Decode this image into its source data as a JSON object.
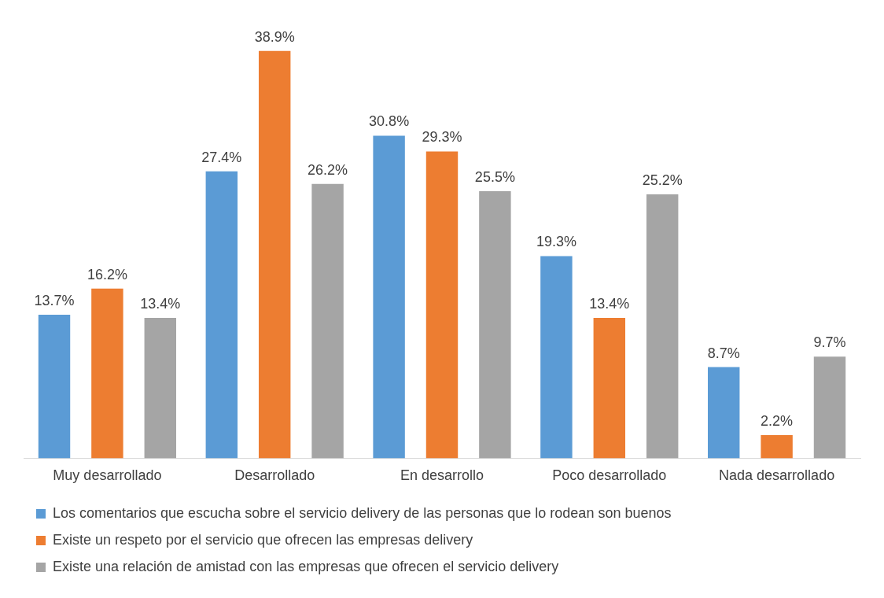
{
  "chart_data": {
    "type": "bar",
    "categories": [
      "Muy desarrollado",
      "Desarrollado",
      "En desarrollo",
      "Poco desarrollado",
      "Nada desarrollado"
    ],
    "series": [
      {
        "name": "Los comentarios que escucha sobre el servicio delivery de las personas que lo rodean son buenos",
        "color": "#5b9bd5",
        "values": [
          13.7,
          27.4,
          30.8,
          19.3,
          8.7
        ],
        "value_labels": [
          "13.7%",
          "27.4%",
          "30.8%",
          "19.3%",
          "8.7%"
        ]
      },
      {
        "name": "Existe un respeto por el servicio que ofrecen las empresas delivery",
        "color": "#ed7d31",
        "values": [
          16.2,
          38.9,
          29.3,
          13.4,
          2.2
        ],
        "value_labels": [
          "16.2%",
          "38.9%",
          "29.3%",
          "13.4%",
          "2.2%"
        ]
      },
      {
        "name": "Existe una relación de amistad con las empresas que ofrecen el servicio delivery",
        "color": "#a5a5a5",
        "values": [
          13.4,
          26.2,
          25.5,
          25.2,
          9.7
        ],
        "value_labels": [
          "13.4%",
          "26.2%",
          "25.5%",
          "25.2%",
          "9.7%"
        ]
      }
    ],
    "legend": "bottom"
  }
}
